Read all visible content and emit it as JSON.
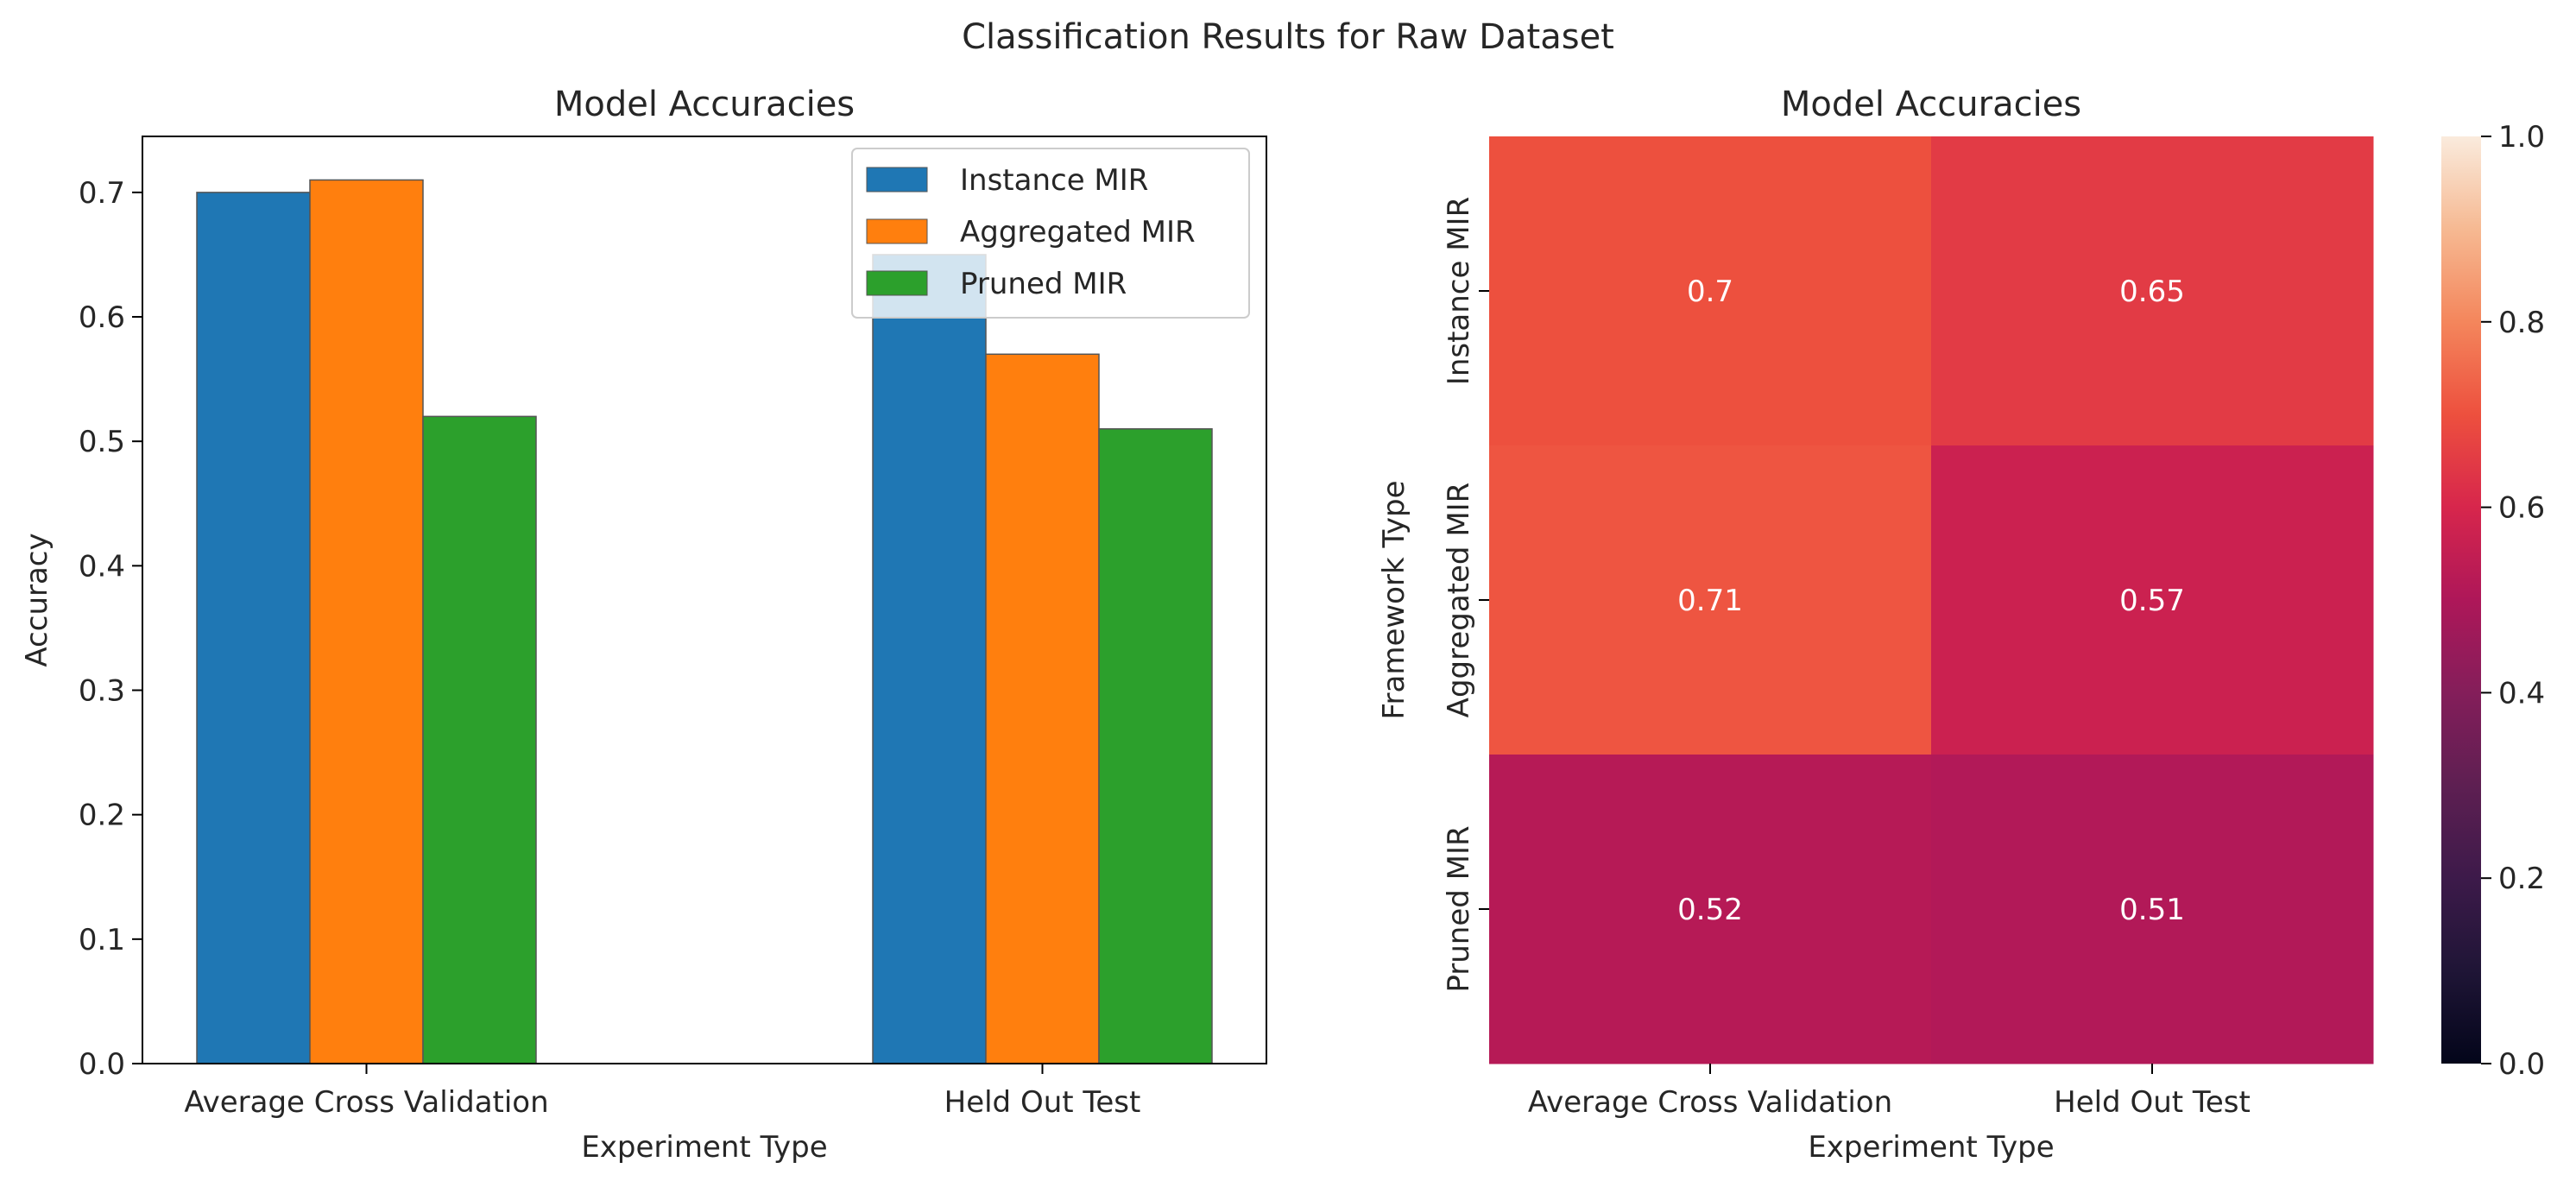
{
  "figure": {
    "title": "Classification Results for Raw Dataset"
  },
  "chart_data": [
    {
      "type": "bar",
      "title": "Model Accuracies",
      "xlabel": "Experiment Type",
      "ylabel": "Accuracy",
      "categories": [
        "Average Cross Validation",
        "Held Out Test"
      ],
      "series": [
        {
          "name": "Instance MIR",
          "values": [
            0.7,
            0.65
          ],
          "color": "#1f77b4"
        },
        {
          "name": "Aggregated MIR",
          "values": [
            0.71,
            0.57
          ],
          "color": "#ff7f0e"
        },
        {
          "name": "Pruned MIR",
          "values": [
            0.52,
            0.51
          ],
          "color": "#2ca02c"
        }
      ],
      "ylim": [
        0,
        0.745
      ],
      "yticks": [
        0.0,
        0.1,
        0.2,
        0.3,
        0.4,
        0.5,
        0.6,
        0.7
      ],
      "ytick_labels": [
        "0.0",
        "0.1",
        "0.2",
        "0.3",
        "0.4",
        "0.5",
        "0.6",
        "0.7"
      ],
      "legend_position": "top-right",
      "grid": false
    },
    {
      "type": "heatmap",
      "title": "Model Accuracies",
      "xlabel": "Experiment Type",
      "ylabel": "Framework Type",
      "x_categories": [
        "Average Cross Validation",
        "Held Out Test"
      ],
      "y_categories": [
        "Instance MIR",
        "Aggregated MIR",
        "Pruned MIR"
      ],
      "values": [
        [
          0.7,
          0.65
        ],
        [
          0.71,
          0.57
        ],
        [
          0.52,
          0.51
        ]
      ],
      "annotations": [
        [
          "0.7",
          "0.65"
        ],
        [
          "0.71",
          "0.57"
        ],
        [
          "0.52",
          "0.51"
        ]
      ],
      "colorbar": {
        "range": [
          0.0,
          1.0
        ],
        "ticks": [
          0.0,
          0.2,
          0.4,
          0.6,
          0.8,
          1.0
        ],
        "tick_labels": [
          "0.0",
          "0.2",
          "0.4",
          "0.6",
          "0.8",
          "1.0"
        ]
      },
      "colormap": "rocket"
    }
  ]
}
